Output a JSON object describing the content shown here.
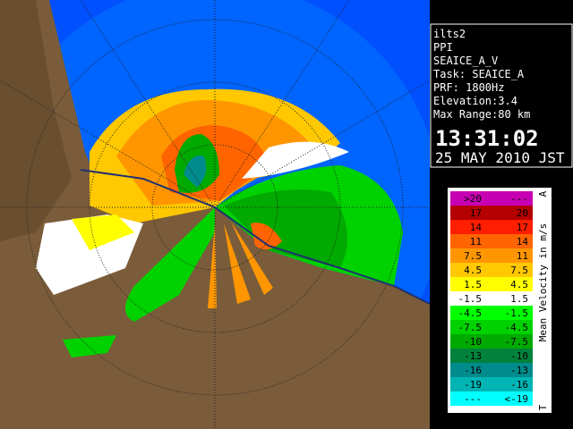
{
  "info": {
    "lines": [
      "ilts2",
      "PPI",
      "SEAICE_A_V",
      "Task: SEAICE_A",
      "PRF: 1800Hz",
      "Elevation:3.4",
      "Max Range:80 km"
    ],
    "time": "13:31:02",
    "date": "25 MAY 2010 JST"
  },
  "legend": {
    "title": "Mean Velocity in m/s",
    "top_mark": "A",
    "bottom_mark": "T",
    "rows": [
      {
        "upper": ">20",
        "lower": "---",
        "color": "#c800b4"
      },
      {
        "upper": "17",
        "lower": "20",
        "color": "#b40000"
      },
      {
        "upper": "14",
        "lower": "17",
        "color": "#ff1e00"
      },
      {
        "upper": "11",
        "lower": "14",
        "color": "#ff6400"
      },
      {
        "upper": "7.5",
        "lower": "11",
        "color": "#ff9600"
      },
      {
        "upper": "4.5",
        "lower": "7.5",
        "color": "#ffc800"
      },
      {
        "upper": "1.5",
        "lower": "4.5",
        "color": "#ffff00"
      },
      {
        "upper": "-1.5",
        "lower": "1.5",
        "color": "#ffffff"
      },
      {
        "upper": "-4.5",
        "lower": "-1.5",
        "color": "#00ff00"
      },
      {
        "upper": "-7.5",
        "lower": "-4.5",
        "color": "#00d200"
      },
      {
        "upper": "-10",
        "lower": "-7.5",
        "color": "#00aa00"
      },
      {
        "upper": "-13",
        "lower": "-10",
        "color": "#00823c"
      },
      {
        "upper": "-16",
        "lower": "-13",
        "color": "#008c8c"
      },
      {
        "upper": "-19",
        "lower": "-16",
        "color": "#00b4b4"
      },
      {
        "upper": "---",
        "lower": "<-19",
        "color": "#00ffff"
      }
    ]
  }
}
